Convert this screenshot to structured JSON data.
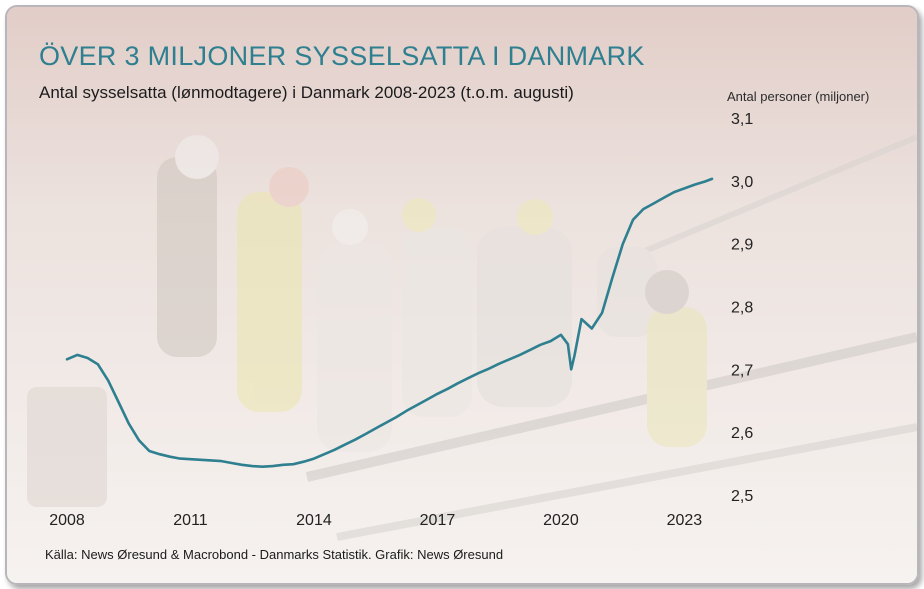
{
  "title": "ÖVER 3 MILJONER SYSSELSATTA I DANMARK",
  "subtitle": "Antal sysselsatta (lønmodtagere) i Danmark 2008-2023 (t.o.m. augusti)",
  "source": "Källa: News Øresund & Macrobond - Danmarks Statistik. Grafik: News Øresund",
  "colors": {
    "line": "#2e7f8f",
    "title": "#2e7f8f"
  },
  "chart_data": {
    "type": "line",
    "title": "ÖVER 3 MILJONER SYSSELSATTA I DANMARK",
    "subtitle": "Antal sysselsatta (lønmodtagere) i Danmark 2008-2023 (t.o.m. augusti)",
    "ylabel": "Antal personer (miljoner)",
    "xlabel": "",
    "x_ticks": [
      2008,
      2011,
      2014,
      2017,
      2020,
      2023
    ],
    "y_ticks": [
      "2,5",
      "2,6",
      "2,7",
      "2,8",
      "2,9",
      "3,0",
      "3,1"
    ],
    "xlim": [
      2008,
      2023.67
    ],
    "ylim": [
      2.5,
      3.1
    ],
    "y_axis_side": "right",
    "grid": false,
    "x": [
      2008.0,
      2008.25,
      2008.5,
      2008.75,
      2009.0,
      2009.25,
      2009.5,
      2009.75,
      2010.0,
      2010.25,
      2010.5,
      2010.75,
      2011.0,
      2011.25,
      2011.5,
      2011.75,
      2012.0,
      2012.25,
      2012.5,
      2012.75,
      2013.0,
      2013.25,
      2013.5,
      2013.75,
      2014.0,
      2014.25,
      2014.5,
      2014.75,
      2015.0,
      2015.25,
      2015.5,
      2015.75,
      2016.0,
      2016.25,
      2016.5,
      2016.75,
      2017.0,
      2017.25,
      2017.5,
      2017.75,
      2018.0,
      2018.25,
      2018.5,
      2018.75,
      2019.0,
      2019.25,
      2019.5,
      2019.75,
      2020.0,
      2020.17,
      2020.25,
      2020.33,
      2020.5,
      2020.75,
      2021.0,
      2021.25,
      2021.5,
      2021.75,
      2022.0,
      2022.25,
      2022.5,
      2022.75,
      2023.0,
      2023.25,
      2023.5,
      2023.67
    ],
    "series": [
      {
        "values": [
          2.716,
          2.723,
          2.718,
          2.708,
          2.682,
          2.648,
          2.614,
          2.587,
          2.57,
          2.565,
          2.561,
          2.558,
          2.557,
          2.556,
          2.555,
          2.554,
          2.551,
          2.548,
          2.546,
          2.545,
          2.546,
          2.548,
          2.549,
          2.553,
          2.558,
          2.565,
          2.572,
          2.58,
          2.588,
          2.597,
          2.606,
          2.615,
          2.624,
          2.634,
          2.643,
          2.652,
          2.661,
          2.669,
          2.678,
          2.686,
          2.694,
          2.701,
          2.709,
          2.716,
          2.723,
          2.731,
          2.739,
          2.745,
          2.755,
          2.74,
          2.7,
          2.722,
          2.78,
          2.765,
          2.79,
          2.846,
          2.899,
          2.938,
          2.955,
          2.964,
          2.973,
          2.982,
          2.988,
          2.994,
          2.999,
          3.003
        ]
      }
    ]
  }
}
